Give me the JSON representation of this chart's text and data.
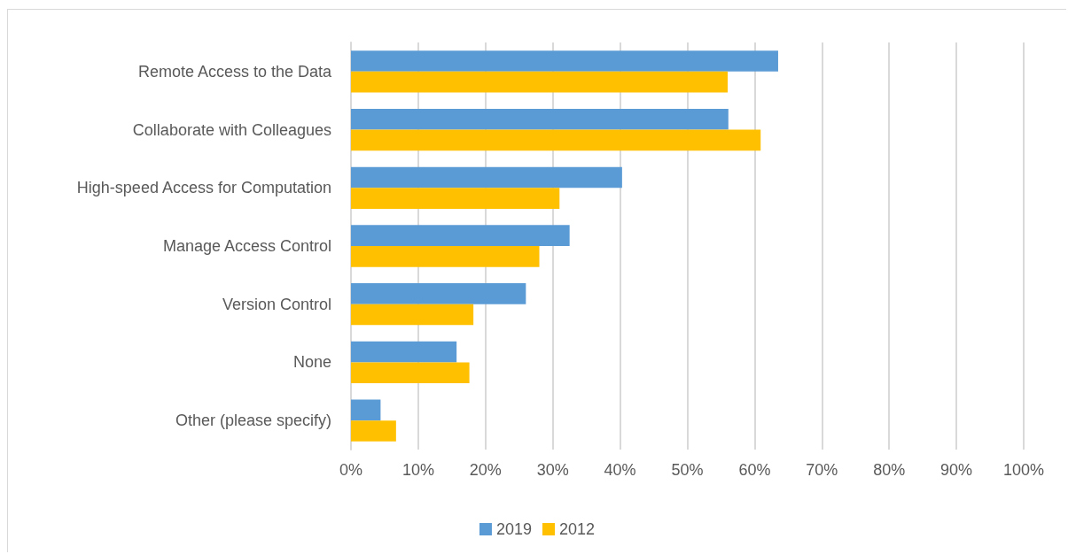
{
  "chart_data": {
    "type": "bar",
    "orientation": "horizontal",
    "categories": [
      "Remote Access to the Data",
      "Collaborate with Colleagues",
      "High-speed Access for Computation",
      "Manage Access Control",
      "Version Control",
      "None",
      "Other (please specify)"
    ],
    "series": [
      {
        "name": "2019",
        "color": "#5b9bd5",
        "values": [
          63.5,
          56.1,
          40.3,
          32.5,
          26.0,
          15.7,
          4.4
        ]
      },
      {
        "name": "2012",
        "color": "#ffc000",
        "values": [
          56.0,
          60.9,
          31.0,
          28.0,
          18.2,
          17.6,
          6.7
        ]
      }
    ],
    "xlim": [
      0,
      100
    ],
    "xticks": [
      {
        "value": 0,
        "label": "0%"
      },
      {
        "value": 10,
        "label": "10%"
      },
      {
        "value": 20,
        "label": "20%"
      },
      {
        "value": 30,
        "label": "30%"
      },
      {
        "value": 40,
        "label": "40%"
      },
      {
        "value": 50,
        "label": "50%"
      },
      {
        "value": 60,
        "label": "60%"
      },
      {
        "value": 70,
        "label": "70%"
      },
      {
        "value": 80,
        "label": "80%"
      },
      {
        "value": 90,
        "label": "90%"
      },
      {
        "value": 100,
        "label": "100%"
      }
    ],
    "grid": "x",
    "legend": "bottom"
  }
}
